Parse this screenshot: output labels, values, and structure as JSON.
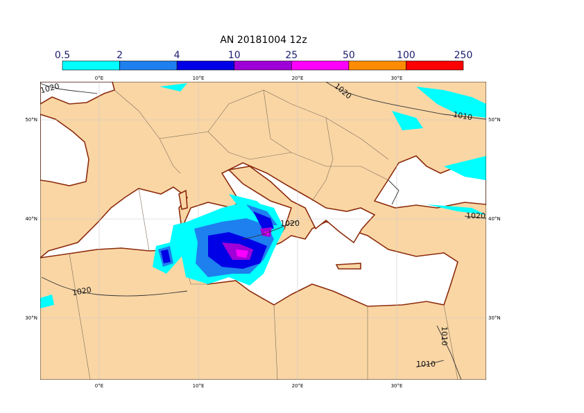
{
  "title": "AN  20181004 12z",
  "legend": {
    "levels": [
      0.5,
      2,
      4,
      10,
      25,
      50,
      100,
      250
    ],
    "colors": [
      "#00ffff",
      "#1e7fef",
      "#0000e6",
      "#a000d8",
      "#ff00ff",
      "#ff8c00",
      "#ff0000"
    ]
  },
  "map": {
    "lon_labels": [
      "0°E",
      "10°E",
      "20°E",
      "30°E"
    ],
    "lat_labels": [
      "50°N",
      "40°N",
      "30°N"
    ],
    "isobar_labels": [
      "1020",
      "1020",
      "1010",
      "1020",
      "1020",
      "1020",
      "1010",
      "1010"
    ]
  }
}
